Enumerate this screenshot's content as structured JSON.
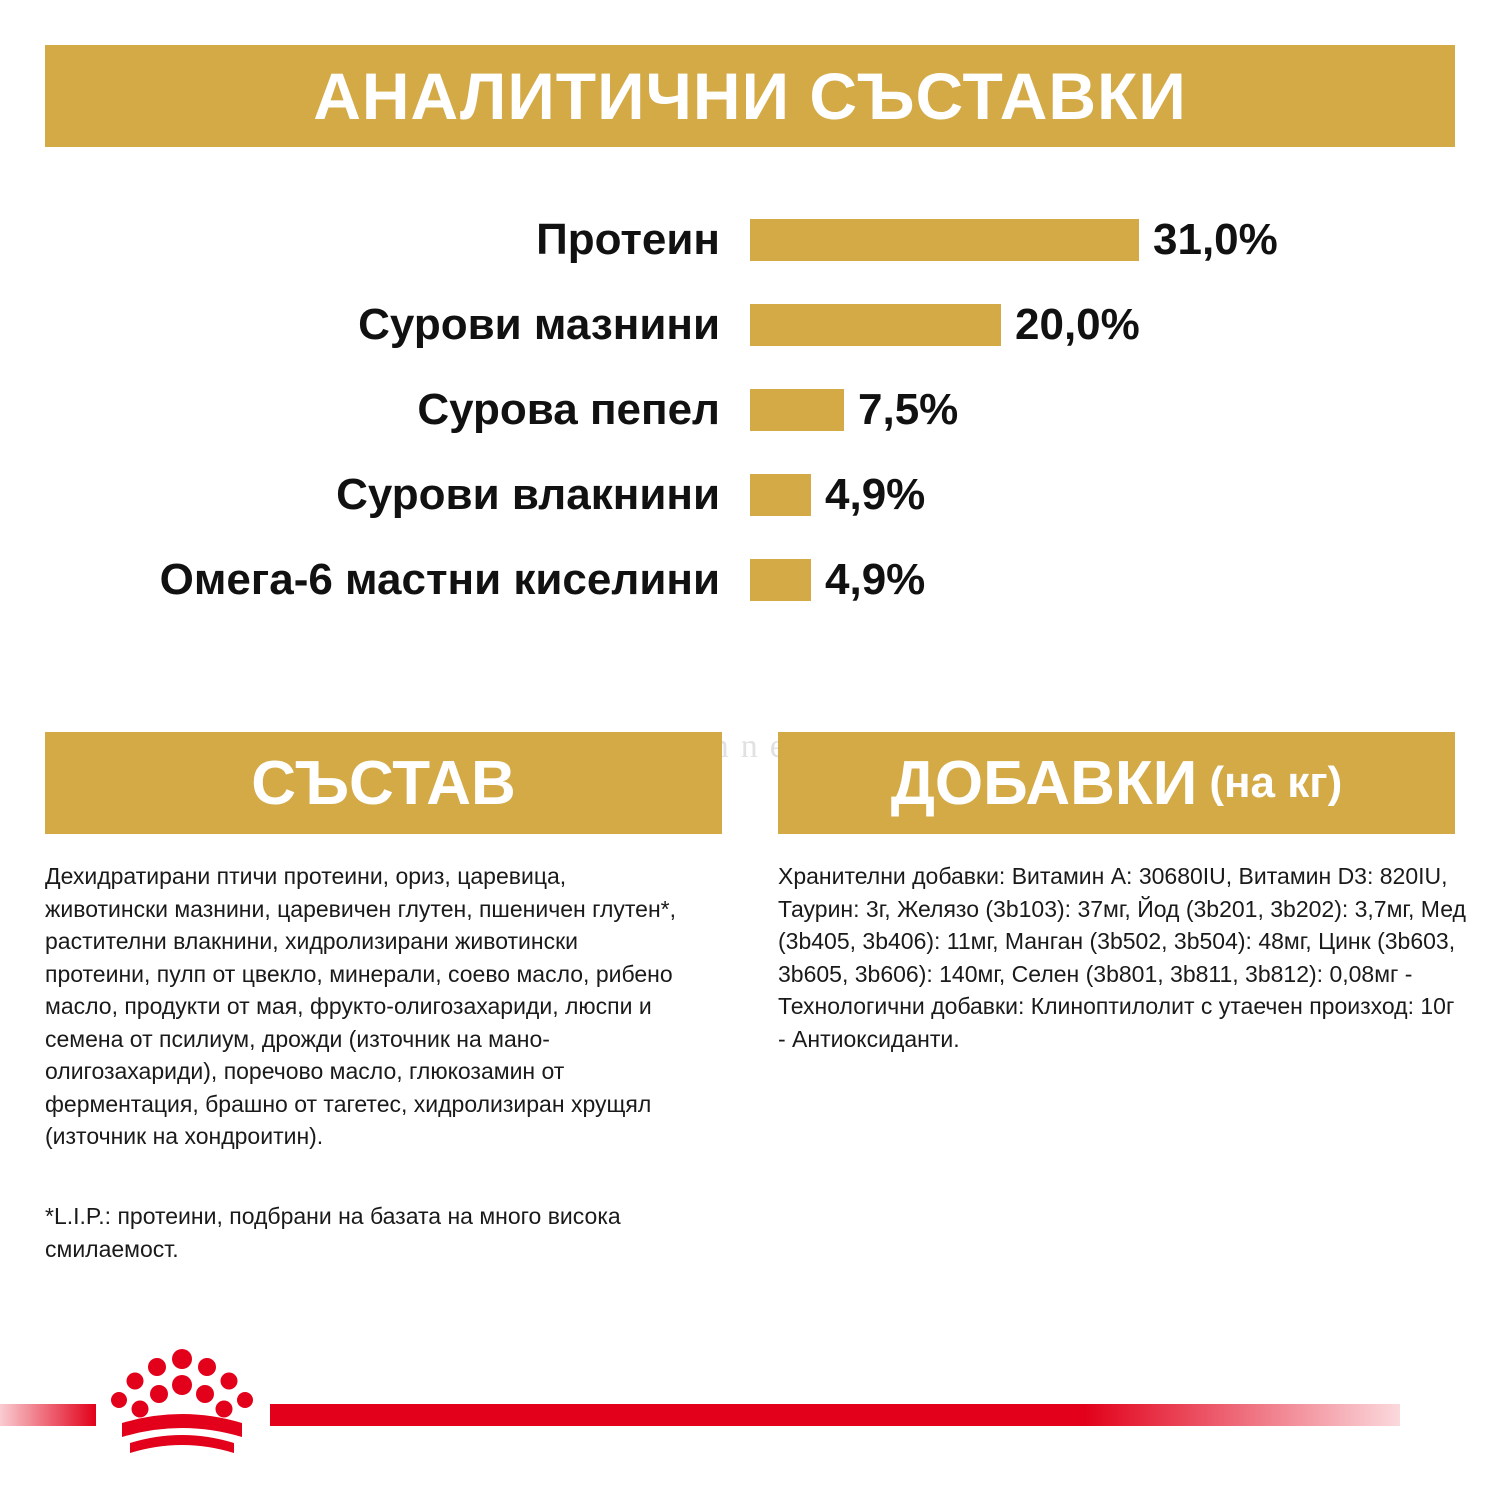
{
  "titles": {
    "analytical": "АНАЛИТИЧНИ СЪСТАВКИ",
    "composition": "СЪСТАВ",
    "additives_main": "ДОБАВКИ",
    "additives_suffix": "(на кг)"
  },
  "chart_data": {
    "type": "bar",
    "orientation": "horizontal",
    "categories": [
      "Протеин",
      "Сурови мазнини",
      "Сурова пепел",
      "Сурови влакнини",
      "Омега-6 мастни киселини"
    ],
    "values": [
      31.0,
      20.0,
      7.5,
      4.9,
      4.9
    ],
    "value_labels": [
      "31,0%",
      "20,0%",
      "7,5%",
      "4,9%",
      "4,9%"
    ],
    "unit": "%",
    "bar_color": "#d4aa47"
  },
  "composition_text": "Дехидратирани птичи протеини, ориз, царевица, животински мазнини, царевичен глутен, пшеничен глутен*, растителни влакнини, хидролизирани животински протеини, пулп от цвекло, минерали, соево масло, рибено масло, продукти от мая, фрукто-олигозахариди, люспи и семена от псилиум, дрожди (източник на мано-олигозахариди), поречово масло, глюкозамин от ферментация, брашно от тагетес, хидролизиран хрущял (източник на хондроитин).",
  "footnote_text": "*L.I.P.: протеини, подбрани на базата на много висока смилаемост.",
  "additives_text": "Хранителни добавки: Витамин A: 30680IU, Витамин D3: 820IU, Таурин: 3г, Желязо (3b103): 37мг, Йод (3b201, 3b202): 3,7мг, Мед (3b405, 3b406): 11мг, Манган (3b502, 3b504): 48мг, Цинк (3b603, 3b605, 3b606): 140мг, Селен (3b801, 3b811, 3b812): 0,08мг - Технологични добавки: Клиноптилолит с утаечен произход: 10г - Антиоксиданти.",
  "watermark": "ariakennel.com",
  "colors": {
    "gold": "#d4aa47",
    "brand_red": "#e2001a",
    "text": "#111111"
  },
  "icons": {
    "logo": "royal-canin-crown-logo"
  }
}
